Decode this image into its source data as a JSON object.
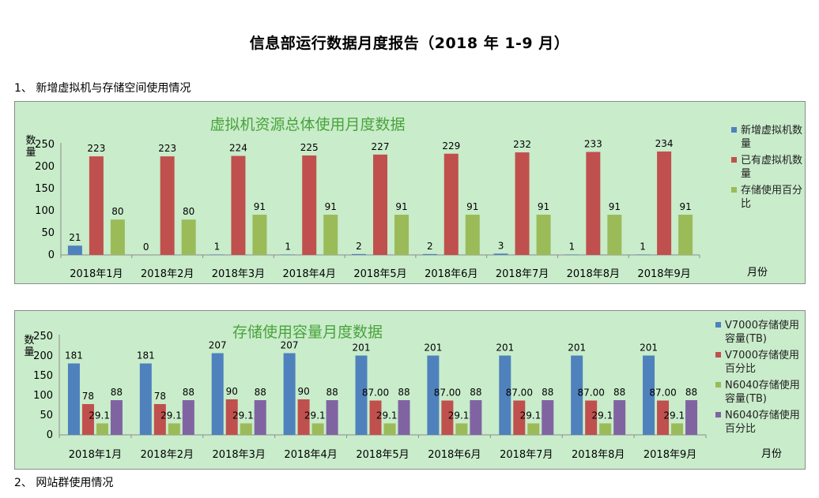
{
  "document": {
    "title": "信息部运行数据月度报告（2018 年 1-9 月）",
    "section1_heading": "1、 新增虚拟机与存储空间使用情况",
    "section2_heading": "2、 网站群使用情况"
  },
  "chart_data": [
    {
      "type": "bar",
      "title": "虚拟机资源总体使用月度数据",
      "ylabel": "数量",
      "xlabel": "月份",
      "categories": [
        "2018年1月",
        "2018年2月",
        "2018年3月",
        "2018年4月",
        "2018年5月",
        "2018年6月",
        "2018年7月",
        "2018年8月",
        "2018年9月"
      ],
      "ylim": [
        0,
        250
      ],
      "yticks": [
        0,
        50,
        100,
        150,
        200,
        250
      ],
      "legend_position": "right",
      "series": [
        {
          "name": "新增虚拟机数量",
          "color": "#4f81bd",
          "values": [
            21,
            0,
            1,
            1,
            2,
            2,
            3,
            1,
            1
          ],
          "labels": [
            "21",
            "0",
            "1",
            "1",
            "2",
            "2",
            "3",
            "1",
            "1"
          ]
        },
        {
          "name": "已有虚拟机数量",
          "color": "#c0504d",
          "values": [
            223,
            223,
            224,
            225,
            227,
            229,
            232,
            233,
            234
          ],
          "labels": [
            "223",
            "223",
            "224",
            "225",
            "227",
            "229",
            "232",
            "233",
            "234"
          ]
        },
        {
          "name": "存储使用百分比",
          "color": "#9bbb59",
          "values": [
            80,
            80,
            91,
            91,
            91,
            91,
            91,
            91,
            91
          ],
          "labels": [
            "80",
            "80",
            "91",
            "91",
            "91",
            "91",
            "91",
            "91",
            "91"
          ]
        }
      ]
    },
    {
      "type": "bar",
      "title": "存储使用容量月度数据",
      "ylabel": "数量",
      "xlabel": "月份",
      "categories": [
        "2018年1月",
        "2018年2月",
        "2018年3月",
        "2018年4月",
        "2018年5月",
        "2018年6月",
        "2018年7月",
        "2018年8月",
        "2018年9月"
      ],
      "ylim": [
        0,
        250
      ],
      "yticks": [
        0,
        50,
        100,
        150,
        200,
        250
      ],
      "legend_position": "right",
      "series": [
        {
          "name": "V7000存储使用容量(TB)",
          "color": "#4f81bd",
          "values": [
            181,
            181,
            207,
            207,
            201,
            201,
            201,
            201,
            201
          ],
          "labels": [
            "181",
            "181",
            "207",
            "207",
            "201",
            "201",
            "201",
            "201",
            "201"
          ]
        },
        {
          "name": "V7000存储使用百分比",
          "color": "#c0504d",
          "values": [
            78,
            78,
            90,
            90,
            87,
            87,
            87,
            87,
            87
          ],
          "labels": [
            "78",
            "78",
            "90",
            "90",
            "87.00",
            "87.00",
            "87.00",
            "87.00",
            "87.00"
          ]
        },
        {
          "name": "N6040存储使用容量(TB)",
          "color": "#9bbb59",
          "values": [
            29.12,
            29.12,
            29.12,
            29.12,
            29.12,
            29.12,
            29.12,
            29.12,
            29.12
          ],
          "labels": [
            "29.12",
            "29.12",
            "29.12",
            "29.12",
            "29.12",
            "29.12",
            "29.12",
            "29.12",
            "29.12"
          ]
        },
        {
          "name": "N6040存储使用百分比",
          "color": "#8064a2",
          "values": [
            88,
            88,
            88,
            88,
            88,
            88,
            88,
            88,
            88
          ],
          "labels": [
            "88",
            "88",
            "88",
            "88",
            "88",
            "88",
            "88",
            "88",
            "88"
          ]
        }
      ]
    }
  ]
}
